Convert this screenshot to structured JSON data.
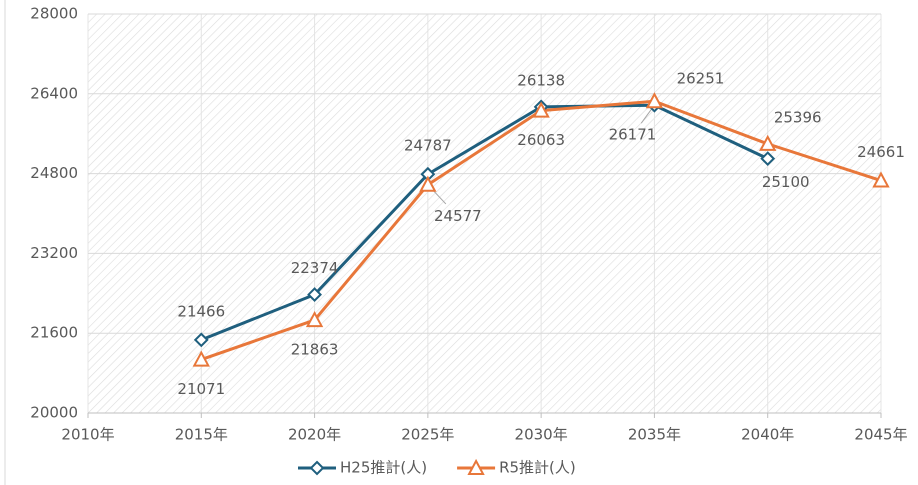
{
  "chart_data": {
    "type": "line",
    "categories": [
      "2010年",
      "2015年",
      "2020年",
      "2025年",
      "2030年",
      "2035年",
      "2040年",
      "2045年"
    ],
    "series": [
      {
        "name": "H25推計(人)",
        "color": "#1f5f7e",
        "marker": "diamond",
        "values": [
          null,
          21466,
          22374,
          24787,
          26138,
          26171,
          25100,
          null
        ]
      },
      {
        "name": "R5推計(人)",
        "color": "#e8773a",
        "marker": "triangle",
        "values": [
          null,
          21071,
          21863,
          24577,
          26063,
          26251,
          25396,
          24661
        ]
      }
    ],
    "ylim": [
      20000,
      28000
    ],
    "yticks": [
      20000,
      21600,
      23200,
      24800,
      26400,
      28000
    ],
    "grid": true,
    "legend": "bottom"
  }
}
